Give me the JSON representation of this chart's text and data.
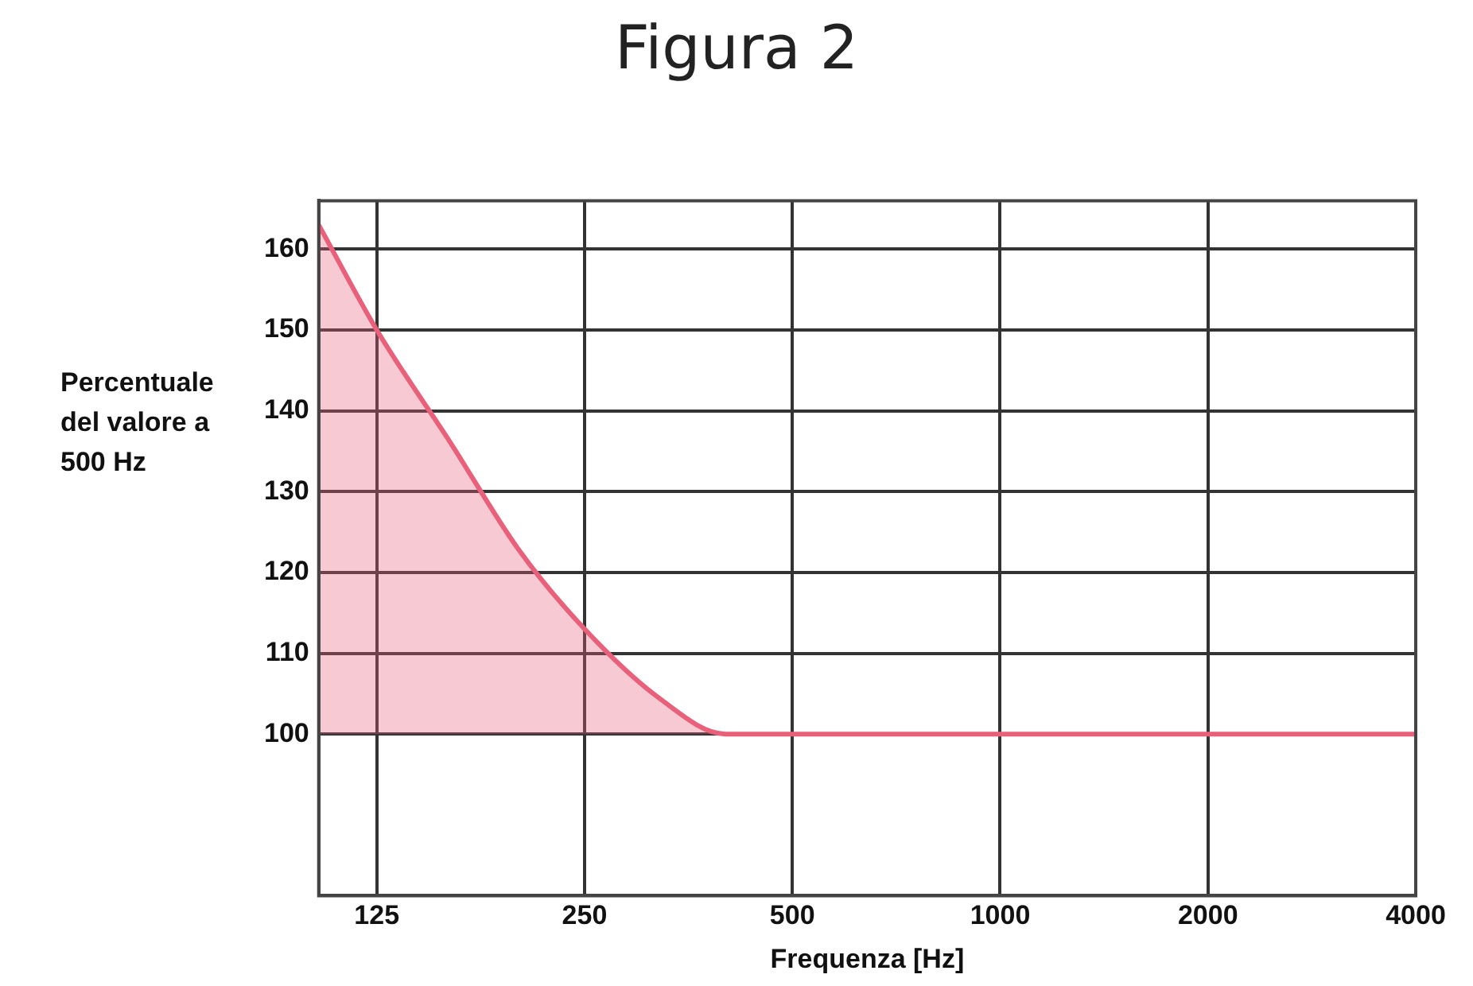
{
  "chart_data": {
    "type": "area",
    "title": "Figura 2",
    "xlabel": "Frequenza [Hz]",
    "ylabel": "Percentuale del valore a 500 Hz",
    "log": "x",
    "x": [
      103,
      125,
      160,
      200,
      250,
      320,
      400,
      500,
      1000,
      2000,
      4000
    ],
    "series": [
      {
        "color": "#e8607a",
        "values": [
          163,
          150,
          136,
          123,
          113,
          104.5,
          100,
          100,
          100,
          100,
          100
        ]
      }
    ],
    "xlim": [
      103,
      4000
    ],
    "xticks": [
      125,
      250,
      500,
      1000,
      2000,
      4000
    ],
    "ylim": [
      80,
      166
    ],
    "yticks": [
      100,
      110,
      120,
      130,
      140,
      150,
      160
    ],
    "grid": true,
    "legend": false
  }
}
